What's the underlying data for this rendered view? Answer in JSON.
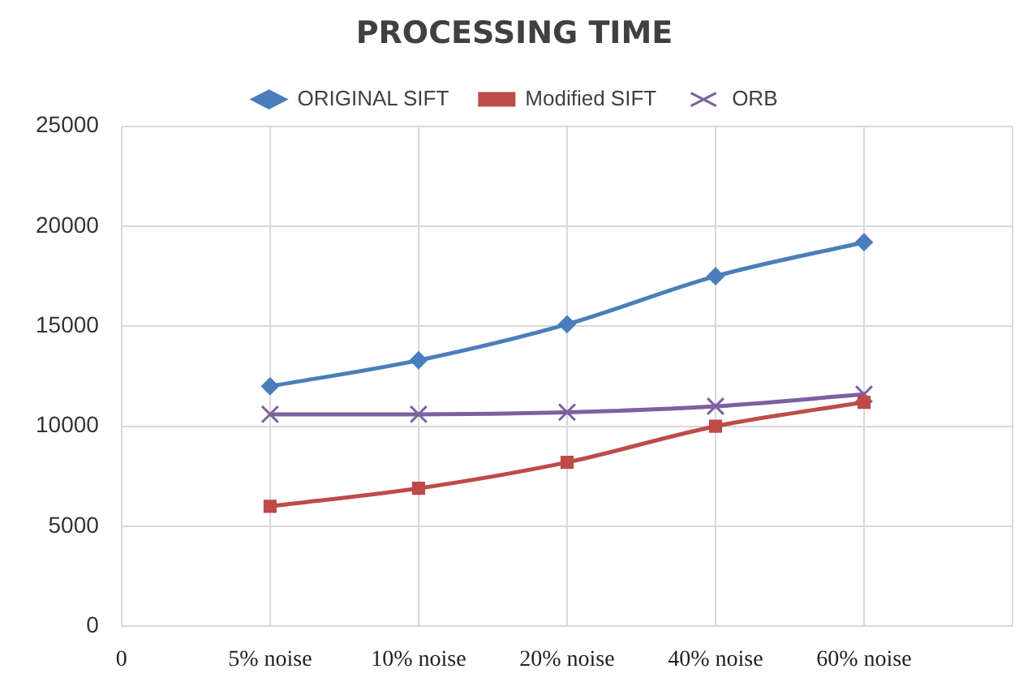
{
  "chart_data": {
    "type": "line",
    "title": "PROCESSING TIME",
    "categories": [
      "0",
      "5% noise",
      "10% noise",
      "20% noise",
      "40% noise",
      "60% noise",
      null
    ],
    "series": [
      {
        "name": "ORIGINAL SIFT",
        "color": "#4a7ebb",
        "marker": "diamond",
        "values": [
          null,
          12000,
          13300,
          15100,
          17500,
          19200,
          null
        ]
      },
      {
        "name": "Modified SIFT",
        "color": "#be4b48",
        "marker": "square",
        "values": [
          null,
          6000,
          6900,
          8200,
          10000,
          11200,
          null
        ]
      },
      {
        "name": "ORB",
        "color": "#7d60a0",
        "marker": "cross",
        "values": [
          null,
          10600,
          10600,
          10700,
          11000,
          11600,
          null
        ]
      }
    ],
    "ylim": [
      0,
      25000
    ],
    "yticks": [
      0,
      5000,
      10000,
      15000,
      20000,
      25000
    ],
    "grid": true,
    "legend": "top"
  }
}
